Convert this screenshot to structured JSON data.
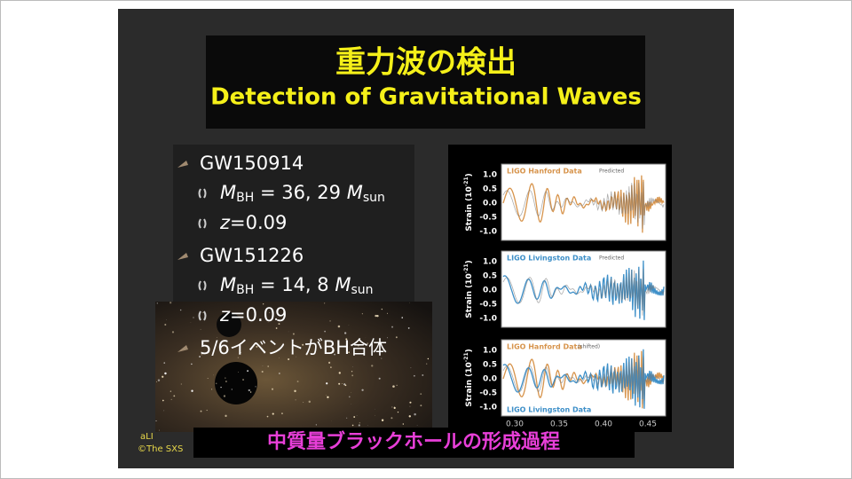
{
  "title": {
    "ja": "重力波の検出",
    "en": "Detection of Gravitational Waves"
  },
  "list": {
    "items": [
      {
        "label": "GW150914",
        "details": [
          {
            "parts": [
              "M",
              "BH",
              " = 36, 29 ",
              "M",
              "sun"
            ]
          },
          {
            "parts": [
              "z",
              "=0.09"
            ]
          }
        ]
      },
      {
        "label": "GW151226",
        "details": [
          {
            "parts": [
              "M",
              "BH",
              " = 14, 8 ",
              "M",
              "sun"
            ]
          },
          {
            "parts": [
              "z",
              "=0.09"
            ]
          }
        ]
      },
      {
        "label": "5/6イベントがBH合体",
        "details": []
      }
    ]
  },
  "figure": {
    "panels": [
      {
        "legend": "LIGO Hanford Data",
        "note": "Predicted"
      },
      {
        "legend": "LIGO Livingston Data",
        "note": "Predicted"
      },
      {
        "legend": "LIGO Hanford Data",
        "note": "(shifted)",
        "legend2": "LIGO Livingston Data"
      }
    ],
    "y_axis_label": [
      "Strain (10",
      "-21",
      ")"
    ],
    "yticks": [
      "1.0",
      "0.5",
      "0.0",
      "-0.5",
      "-1.0"
    ],
    "xticks": [
      "0.30",
      "0.35",
      "0.40",
      "0.45"
    ]
  },
  "caption": "中質量ブラックホールの形成過程",
  "credit": [
    "aLI",
    "©The SXS"
  ]
}
